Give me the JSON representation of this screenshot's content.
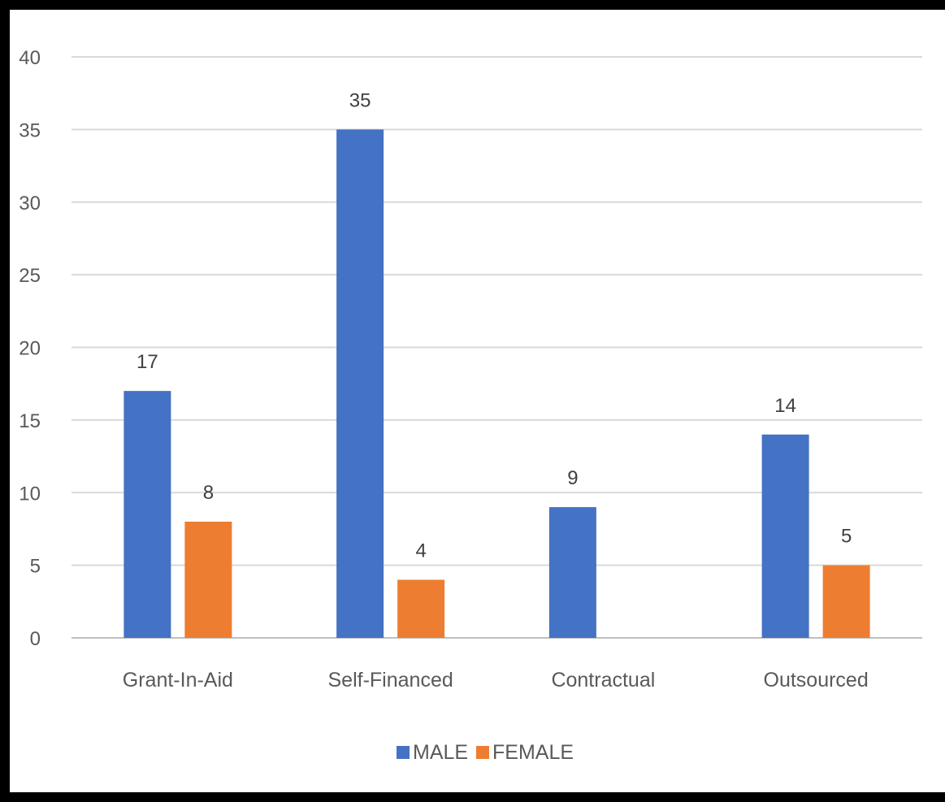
{
  "chart_data": {
    "type": "bar",
    "categories": [
      "Grant-In-Aid",
      "Self-Financed",
      "Contractual",
      "Outsourced"
    ],
    "series": [
      {
        "name": "MALE",
        "values": [
          17,
          35,
          9,
          14
        ],
        "color": "#4472C4"
      },
      {
        "name": "FEMALE",
        "values": [
          8,
          4,
          null,
          5
        ],
        "color": "#ED7D31"
      }
    ],
    "title": "",
    "xlabel": "",
    "ylabel": "",
    "ylim": [
      0,
      40
    ],
    "yticks": [
      "0",
      "5",
      "10",
      "15",
      "20",
      "25",
      "30",
      "35",
      "40"
    ],
    "grid": true,
    "legend_position": "bottom",
    "data_labels": true
  }
}
